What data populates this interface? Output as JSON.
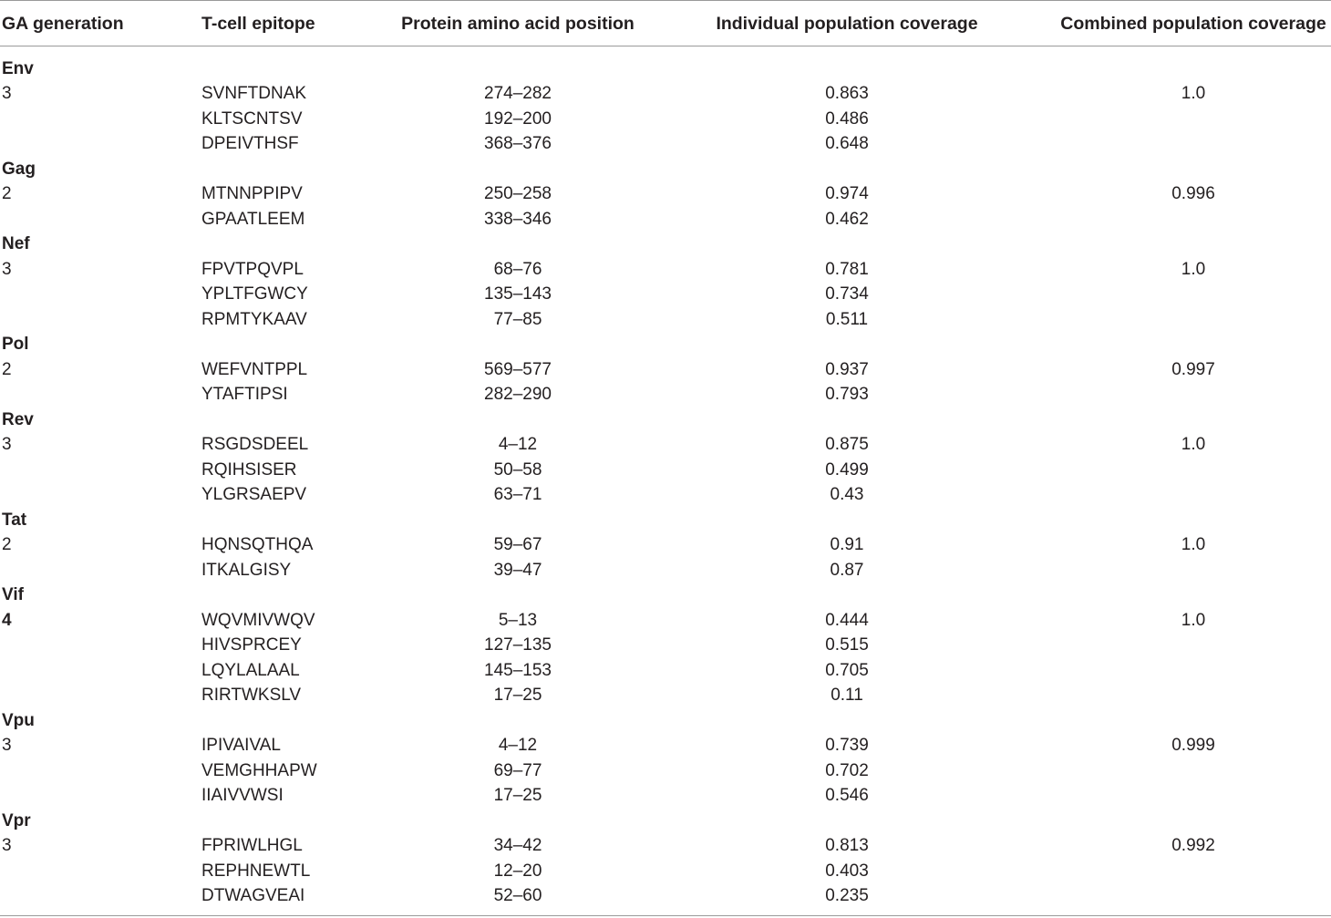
{
  "headers": [
    "GA generation",
    "T-cell epitope",
    "Protein amino acid position",
    "Individual population coverage",
    "Combined population coverage"
  ],
  "groups": [
    {
      "protein": "Env",
      "generation": "3",
      "generation_bold": false,
      "combined": "1.0",
      "rows": [
        [
          "SVNFTDNAK",
          "274–282",
          "0.863"
        ],
        [
          "KLTSCNTSV",
          "192–200",
          "0.486"
        ],
        [
          "DPEIVTHSF",
          "368–376",
          "0.648"
        ]
      ]
    },
    {
      "protein": "Gag",
      "generation": "2",
      "generation_bold": false,
      "combined": "0.996",
      "rows": [
        [
          "MTNNPPIPV",
          "250–258",
          "0.974"
        ],
        [
          "GPAATLEEM",
          "338–346",
          "0.462"
        ]
      ]
    },
    {
      "protein": "Nef",
      "generation": "3",
      "generation_bold": false,
      "combined": "1.0",
      "rows": [
        [
          "FPVTPQVPL",
          "68–76",
          "0.781"
        ],
        [
          "YPLTFGWCY",
          "135–143",
          "0.734"
        ],
        [
          "RPMTYKAAV",
          "77–85",
          "0.511"
        ]
      ]
    },
    {
      "protein": "Pol",
      "generation": "2",
      "generation_bold": false,
      "combined": "0.997",
      "rows": [
        [
          "WEFVNTPPL",
          "569–577",
          "0.937"
        ],
        [
          "YTAFTIPSI",
          "282–290",
          "0.793"
        ]
      ]
    },
    {
      "protein": "Rev",
      "generation": "3",
      "generation_bold": false,
      "combined": "1.0",
      "rows": [
        [
          "RSGDSDEEL",
          "4–12",
          "0.875"
        ],
        [
          "RQIHSISER",
          "50–58",
          "0.499"
        ],
        [
          "YLGRSAEPV",
          "63–71",
          "0.43"
        ]
      ]
    },
    {
      "protein": "Tat",
      "generation": "2",
      "generation_bold": false,
      "combined": "1.0",
      "rows": [
        [
          "HQNSQTHQA",
          "59–67",
          "0.91"
        ],
        [
          "ITKALGISY",
          "39–47",
          "0.87"
        ]
      ]
    },
    {
      "protein": "Vif",
      "generation": "4",
      "generation_bold": true,
      "combined": "1.0",
      "rows": [
        [
          "WQVMIVWQV",
          "5–13",
          "0.444"
        ],
        [
          "HIVSPRCEY",
          "127–135",
          "0.515"
        ],
        [
          "LQYLALAAL",
          "145–153",
          "0.705"
        ],
        [
          "RIRTWKSLV",
          "17–25",
          "0.11"
        ]
      ]
    },
    {
      "protein": "Vpu",
      "generation": "3",
      "generation_bold": false,
      "combined": "0.999",
      "rows": [
        [
          "IPIVAIVAL",
          "4–12",
          "0.739"
        ],
        [
          "VEMGHHAPW",
          "69–77",
          "0.702"
        ],
        [
          "IIAIVVWSI",
          "17–25",
          "0.546"
        ]
      ]
    },
    {
      "protein": "Vpr",
      "generation": "3",
      "generation_bold": false,
      "combined": "0.992",
      "rows": [
        [
          "FPRIWLHGL",
          "34–42",
          "0.813"
        ],
        [
          "REPHNEWTL",
          "12–20",
          "0.403"
        ],
        [
          "DTWAGVEAI",
          "52–60",
          "0.235"
        ]
      ]
    }
  ]
}
